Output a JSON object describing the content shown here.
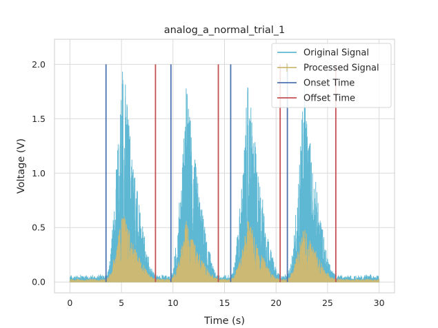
{
  "chart_data": {
    "type": "line",
    "title": "analog_a_normal_trial_1",
    "xlabel": "Time (s)",
    "ylabel": "Voltage (V)",
    "xlim": [
      -1.5,
      31.5
    ],
    "ylim": [
      -0.1,
      2.23
    ],
    "xticks": [
      0,
      5,
      10,
      15,
      20,
      25,
      30
    ],
    "xtick_labels": [
      "0",
      "5",
      "10",
      "15",
      "20",
      "25",
      "30"
    ],
    "yticks": [
      0.0,
      0.5,
      1.0,
      1.5,
      2.0
    ],
    "ytick_labels": [
      "0.0",
      "0.5",
      "1.0",
      "1.5",
      "2.0"
    ],
    "grid": true,
    "legend_position": "top-right",
    "series": [
      {
        "name": "Original Signal",
        "color": "#5fb8d3",
        "style": "noisy-signal",
        "baseline_peak": 0.07,
        "bursts": [
          {
            "start": 3.5,
            "end": 8.3,
            "peak_time": 5.1,
            "peak": 2.12
          },
          {
            "start": 9.8,
            "end": 14.4,
            "peak_time": 11.3,
            "peak": 1.84
          },
          {
            "start": 15.6,
            "end": 20.4,
            "peak_time": 17.3,
            "peak": 1.87
          },
          {
            "start": 21.1,
            "end": 25.8,
            "peak_time": 22.7,
            "peak": 1.83
          }
        ]
      },
      {
        "name": "Processed Signal",
        "color": "#ccb974",
        "style": "noisy-signal",
        "baseline_peak": 0.03,
        "bursts": [
          {
            "start": 3.5,
            "end": 8.3,
            "peak_time": 5.1,
            "peak": 0.67
          },
          {
            "start": 9.8,
            "end": 14.4,
            "peak_time": 11.3,
            "peak": 0.55
          },
          {
            "start": 15.6,
            "end": 20.4,
            "peak_time": 17.3,
            "peak": 0.57
          },
          {
            "start": 21.1,
            "end": 25.8,
            "peak_time": 22.7,
            "peak": 0.54
          }
        ]
      },
      {
        "name": "Onset Time",
        "color": "#4c72b0",
        "style": "vlines",
        "x": [
          3.5,
          9.8,
          15.6,
          21.1
        ],
        "ymin": 0,
        "ymax": 2.0
      },
      {
        "name": "Offset Time",
        "color": "#c44e52",
        "style": "vlines",
        "x": [
          8.3,
          14.4,
          20.4,
          25.8
        ],
        "ymin": 0,
        "ymax": 2.0
      }
    ]
  }
}
